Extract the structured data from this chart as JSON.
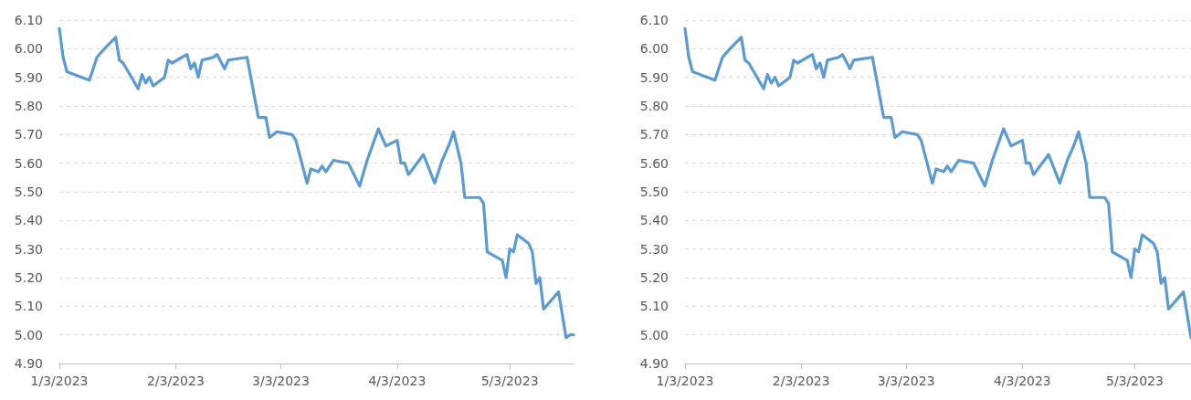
{
  "chart_data": [
    {
      "type": "line",
      "x": [
        "2023-01-03",
        "2023-01-04",
        "2023-01-05",
        "2023-01-09",
        "2023-01-11",
        "2023-01-13",
        "2023-01-15",
        "2023-01-18",
        "2023-01-19",
        "2023-01-20",
        "2023-01-24",
        "2023-01-25",
        "2023-01-26",
        "2023-01-27",
        "2023-01-28",
        "2023-01-31",
        "2023-02-01",
        "2023-02-02",
        "2023-02-06",
        "2023-02-07",
        "2023-02-08",
        "2023-02-09",
        "2023-02-10",
        "2023-02-13",
        "2023-02-14",
        "2023-02-16",
        "2023-02-17",
        "2023-02-22",
        "2023-02-23",
        "2023-02-25",
        "2023-02-27",
        "2023-02-28",
        "2023-03-02",
        "2023-03-06",
        "2023-03-07",
        "2023-03-10",
        "2023-03-11",
        "2023-03-13",
        "2023-03-14",
        "2023-03-15",
        "2023-03-17",
        "2023-03-21",
        "2023-03-24",
        "2023-03-26",
        "2023-03-29",
        "2023-03-31",
        "2023-04-03",
        "2023-04-04",
        "2023-04-05",
        "2023-04-06",
        "2023-04-10",
        "2023-04-13",
        "2023-04-15",
        "2023-04-17",
        "2023-04-18",
        "2023-04-20",
        "2023-04-21",
        "2023-04-25",
        "2023-04-26",
        "2023-04-27",
        "2023-05-01",
        "2023-05-02",
        "2023-05-03",
        "2023-05-04",
        "2023-05-05",
        "2023-05-08",
        "2023-05-09",
        "2023-05-10",
        "2023-05-11",
        "2023-05-12",
        "2023-05-16",
        "2023-05-18",
        "2023-05-19",
        "2023-05-20"
      ],
      "series": [
        {
          "color": "#5b9bd5",
          "values": [
            6.07,
            5.97,
            5.92,
            5.9,
            5.89,
            5.97,
            6.0,
            6.04,
            5.96,
            5.95,
            5.86,
            5.91,
            5.88,
            5.9,
            5.87,
            5.9,
            5.96,
            5.95,
            5.98,
            5.93,
            5.95,
            5.9,
            5.96,
            5.97,
            5.98,
            5.93,
            5.96,
            5.97,
            5.9,
            5.76,
            5.76,
            5.69,
            5.71,
            5.7,
            5.68,
            5.53,
            5.58,
            5.57,
            5.59,
            5.57,
            5.61,
            5.6,
            5.52,
            5.61,
            5.72,
            5.66,
            5.68,
            5.6,
            5.6,
            5.56,
            5.63,
            5.53,
            5.61,
            5.67,
            5.71,
            5.6,
            5.48,
            5.48,
            5.46,
            5.29,
            5.26,
            5.2,
            5.3,
            5.29,
            5.35,
            5.32,
            5.29,
            5.18,
            5.2,
            5.09,
            5.15,
            4.99,
            5.0,
            5.0
          ]
        }
      ],
      "xlim": [
        "2023-01-03",
        "2023-05-20"
      ],
      "xticks": [
        {
          "value": "2023-01-03",
          "label": "1/3/2023"
        },
        {
          "value": "2023-02-03",
          "label": "2/3/2023"
        },
        {
          "value": "2023-03-03",
          "label": "3/3/2023"
        },
        {
          "value": "2023-04-03",
          "label": "4/3/2023"
        },
        {
          "value": "2023-05-03",
          "label": "5/3/2023"
        }
      ],
      "ylim": [
        4.9,
        6.1
      ],
      "yticks": [
        {
          "value": 4.9,
          "label": "4.90"
        },
        {
          "value": 5.0,
          "label": "5.00"
        },
        {
          "value": 5.1,
          "label": "5.10"
        },
        {
          "value": 5.2,
          "label": "5.20"
        },
        {
          "value": 5.3,
          "label": "5.30"
        },
        {
          "value": 5.4,
          "label": "5.40"
        },
        {
          "value": 5.5,
          "label": "5.50"
        },
        {
          "value": 5.6,
          "label": "5.60"
        },
        {
          "value": 5.7,
          "label": "5.70"
        },
        {
          "value": 5.8,
          "label": "5.80"
        },
        {
          "value": 5.9,
          "label": "5.90"
        },
        {
          "value": 6.0,
          "label": "6.00"
        },
        {
          "value": 6.1,
          "label": "6.10"
        }
      ],
      "grid": "y",
      "marker": "none",
      "line_style": "solid"
    },
    {
      "type": "line",
      "x": [
        "2023-01-03",
        "2023-01-04",
        "2023-01-05",
        "2023-01-09",
        "2023-01-11",
        "2023-01-13",
        "2023-01-15",
        "2023-01-18",
        "2023-01-19",
        "2023-01-20",
        "2023-01-24",
        "2023-01-25",
        "2023-01-26",
        "2023-01-27",
        "2023-01-28",
        "2023-01-31",
        "2023-02-01",
        "2023-02-02",
        "2023-02-06",
        "2023-02-07",
        "2023-02-08",
        "2023-02-09",
        "2023-02-10",
        "2023-02-13",
        "2023-02-14",
        "2023-02-16",
        "2023-02-17",
        "2023-02-22",
        "2023-02-23",
        "2023-02-25",
        "2023-02-27",
        "2023-02-28",
        "2023-03-02",
        "2023-03-06",
        "2023-03-07",
        "2023-03-10",
        "2023-03-11",
        "2023-03-13",
        "2023-03-14",
        "2023-03-15",
        "2023-03-17",
        "2023-03-21",
        "2023-03-24",
        "2023-03-26",
        "2023-03-29",
        "2023-03-31",
        "2023-04-03",
        "2023-04-04",
        "2023-04-05",
        "2023-04-06",
        "2023-04-10",
        "2023-04-13",
        "2023-04-15",
        "2023-04-17",
        "2023-04-18",
        "2023-04-20",
        "2023-04-21",
        "2023-04-25",
        "2023-04-26",
        "2023-04-27",
        "2023-05-01",
        "2023-05-02",
        "2023-05-03",
        "2023-05-04",
        "2023-05-05",
        "2023-05-08",
        "2023-05-09",
        "2023-05-10",
        "2023-05-11",
        "2023-05-12",
        "2023-05-16",
        "2023-05-18"
      ],
      "series": [
        {
          "color": "#5b9bd5",
          "values": [
            6.07,
            5.97,
            5.92,
            5.9,
            5.89,
            5.97,
            6.0,
            6.04,
            5.96,
            5.95,
            5.86,
            5.91,
            5.88,
            5.9,
            5.87,
            5.9,
            5.96,
            5.95,
            5.98,
            5.93,
            5.95,
            5.9,
            5.96,
            5.97,
            5.98,
            5.93,
            5.96,
            5.97,
            5.9,
            5.76,
            5.76,
            5.69,
            5.71,
            5.7,
            5.68,
            5.53,
            5.58,
            5.57,
            5.59,
            5.57,
            5.61,
            5.6,
            5.52,
            5.61,
            5.72,
            5.66,
            5.68,
            5.6,
            5.6,
            5.56,
            5.63,
            5.53,
            5.61,
            5.67,
            5.71,
            5.6,
            5.48,
            5.48,
            5.46,
            5.29,
            5.26,
            5.2,
            5.3,
            5.29,
            5.35,
            5.32,
            5.29,
            5.18,
            5.2,
            5.09,
            5.15,
            4.99
          ]
        }
      ],
      "xlim": [
        "2023-01-03",
        "2023-05-18"
      ],
      "xticks": [
        {
          "value": "2023-01-03",
          "label": "1/3/2023"
        },
        {
          "value": "2023-02-03",
          "label": "2/3/2023"
        },
        {
          "value": "2023-03-03",
          "label": "3/3/2023"
        },
        {
          "value": "2023-04-03",
          "label": "4/3/2023"
        },
        {
          "value": "2023-05-03",
          "label": "5/3/2023"
        }
      ],
      "ylim": [
        4.9,
        6.1
      ],
      "yticks": [
        {
          "value": 4.9,
          "label": "4.90"
        },
        {
          "value": 5.0,
          "label": "5.00"
        },
        {
          "value": 5.1,
          "label": "5.10"
        },
        {
          "value": 5.2,
          "label": "5.20"
        },
        {
          "value": 5.3,
          "label": "5.30"
        },
        {
          "value": 5.4,
          "label": "5.40"
        },
        {
          "value": 5.5,
          "label": "5.50"
        },
        {
          "value": 5.6,
          "label": "5.60"
        },
        {
          "value": 5.7,
          "label": "5.70"
        },
        {
          "value": 5.8,
          "label": "5.80"
        },
        {
          "value": 5.9,
          "label": "5.90"
        },
        {
          "value": 6.0,
          "label": "6.00"
        },
        {
          "value": 6.1,
          "label": "6.10"
        }
      ],
      "grid": "y",
      "marker": "none",
      "line_style": "solid"
    }
  ]
}
